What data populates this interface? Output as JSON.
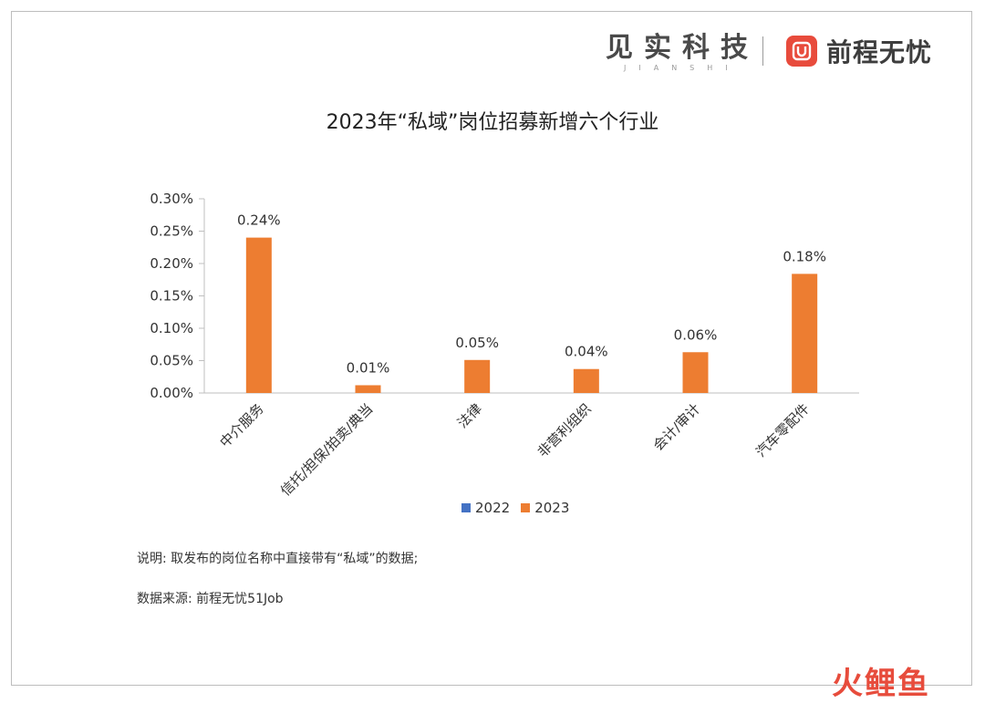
{
  "brand": {
    "jianshi_cn": "见实科技",
    "jianshi_en": "JIANSHI",
    "job51_name": "前程无忧",
    "job51_color": "#e84b3c"
  },
  "chart_data": {
    "type": "bar",
    "title": "2023年“私域”岗位招募新增六个行业",
    "categories": [
      "中介服务",
      "信托/担保/拍卖/典当",
      "法律",
      "非营利组织",
      "会计/审计",
      "汽车零配件"
    ],
    "series": [
      {
        "name": "2022",
        "color": "#4472c4",
        "values": [
          0,
          0,
          0,
          0,
          0,
          0
        ]
      },
      {
        "name": "2023",
        "color": "#ed7d31",
        "values": [
          0.24,
          0.012,
          0.051,
          0.037,
          0.063,
          0.184
        ]
      }
    ],
    "data_labels": [
      "0.24%",
      "0.01%",
      "0.05%",
      "0.04%",
      "0.06%",
      "0.18%"
    ],
    "y_ticks": [
      "0.00%",
      "0.05%",
      "0.10%",
      "0.15%",
      "0.20%",
      "0.25%",
      "0.30%"
    ],
    "ylim": [
      0,
      0.3
    ],
    "ylabel": "",
    "xlabel": "",
    "legend_position": "bottom"
  },
  "legend": {
    "label_2022": "2022",
    "label_2023": "2023"
  },
  "notes": {
    "description": "说明: 取发布的岗位名称中直接带有“私域”的数据;",
    "source": "数据来源: 前程无忧51Job"
  },
  "watermark": {
    "char1": "火",
    "char2": "鲤",
    "char3": "鱼"
  }
}
